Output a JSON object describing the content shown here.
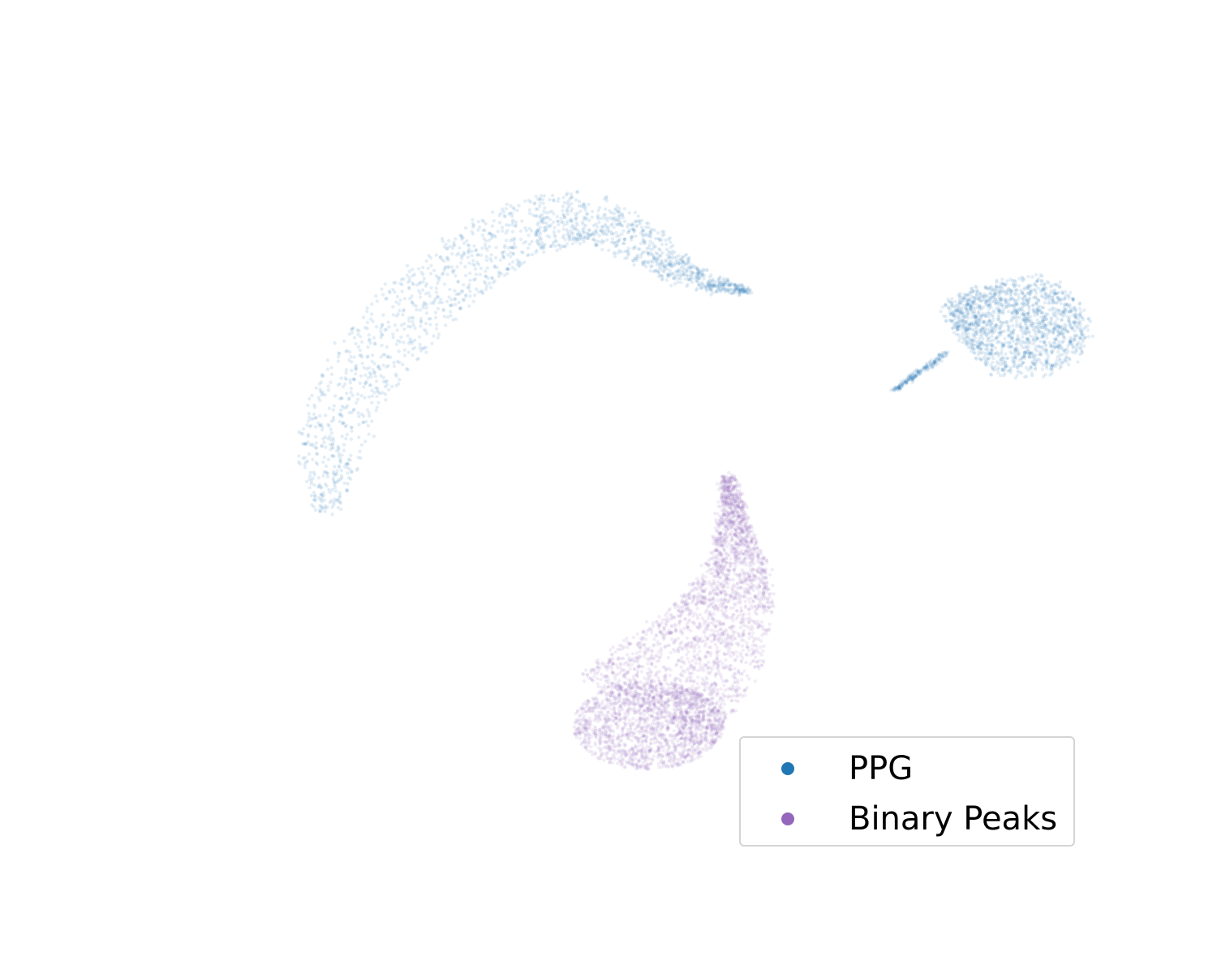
{
  "chart_data": {
    "type": "scatter",
    "title": "",
    "xlabel": "",
    "ylabel": "",
    "axes_visible": false,
    "grid": false,
    "xlim": [
      0,
      100
    ],
    "ylim": [
      0,
      100
    ],
    "legend_position": "lower-right",
    "series": [
      {
        "name": "PPG",
        "color": "#1f77b4",
        "marker_alpha": 0.12,
        "shape": "point cloud",
        "clusters": [
          {
            "label": "arc",
            "spine": [
              [
                18.3,
                47.1
              ],
              [
                18.6,
                55.1
              ],
              [
                21.3,
                64.9
              ],
              [
                26.7,
                73.5
              ],
              [
                33.0,
                80.5
              ],
              [
                40.0,
                86.2
              ],
              [
                46.2,
                87.2
              ],
              [
                52.0,
                83.2
              ],
              [
                57.0,
                78.8
              ],
              [
                63.0,
                77.0
              ]
            ],
            "halfwidth": [
              1.2,
              3.5,
              4.2,
              4.2,
              4.0,
              3.8,
              3.4,
              2.6,
              1.5,
              0.2
            ],
            "point_count": 1800
          },
          {
            "label": "wedge",
            "center": [
              91.5,
              72.5
            ],
            "radius": [
              8.5,
              7.5
            ],
            "rotation_deg": -20,
            "point_count": 1500,
            "tail": {
              "from": [
                84.0,
                68.5
              ],
              "to": [
                78.5,
                63.5
              ],
              "point_count": 180
            }
          }
        ]
      },
      {
        "name": "Binary Peaks",
        "color": "#9467bd",
        "marker_alpha": 0.12,
        "shape": "point cloud",
        "clusters": [
          {
            "label": "teardrop",
            "spine": [
              [
                61.0,
                52.0
              ],
              [
                61.6,
                46.0
              ],
              [
                62.0,
                40.0
              ],
              [
                61.0,
                34.0
              ],
              [
                58.5,
                28.5
              ],
              [
                55.0,
                24.0
              ],
              [
                52.0,
                20.0
              ]
            ],
            "halfwidth": [
              0.6,
              1.5,
              3.2,
              5.0,
              6.5,
              7.8,
              8.2
            ],
            "bulb": {
              "center": [
                52.5,
                18.2
              ],
              "radius": [
                8.0,
                6.0
              ]
            },
            "point_count": 2600
          }
        ]
      }
    ]
  }
}
